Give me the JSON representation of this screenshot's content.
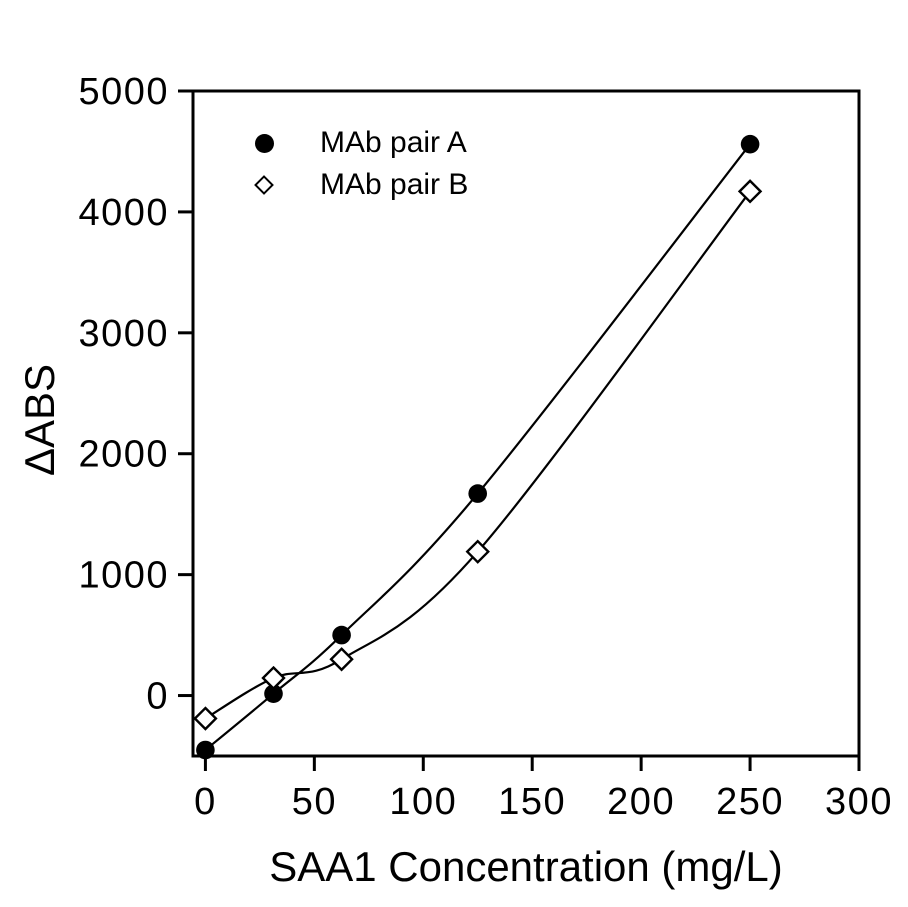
{
  "figure": {
    "background": "#ffffff",
    "foreground": "#000000"
  },
  "chart_data": {
    "type": "scatter",
    "title": "",
    "xlabel": "SAA1 Concentration (mg/L)",
    "ylabel": "ΔABS",
    "xlim": [
      -5.7,
      300
    ],
    "ylim": [
      -500,
      5000
    ],
    "x_ticks": [
      0,
      50,
      100,
      150,
      200,
      250,
      300
    ],
    "y_ticks": [
      0,
      1000,
      2000,
      3000,
      4000,
      5000
    ],
    "grid": false,
    "legend_position": "upper-left-inside",
    "line_style": "smooth",
    "series": [
      {
        "name": "MAb pair A",
        "marker": "filled-circle",
        "color": "#000000",
        "x": [
          0,
          31.25,
          62.5,
          125,
          250
        ],
        "y": [
          -450,
          15,
          500,
          1670,
          4560
        ]
      },
      {
        "name": "MAb pair B",
        "marker": "open-diamond",
        "color": "#000000",
        "x": [
          0,
          31.25,
          62.5,
          125,
          250
        ],
        "y": [
          -190,
          145,
          300,
          1190,
          4170
        ]
      }
    ]
  }
}
